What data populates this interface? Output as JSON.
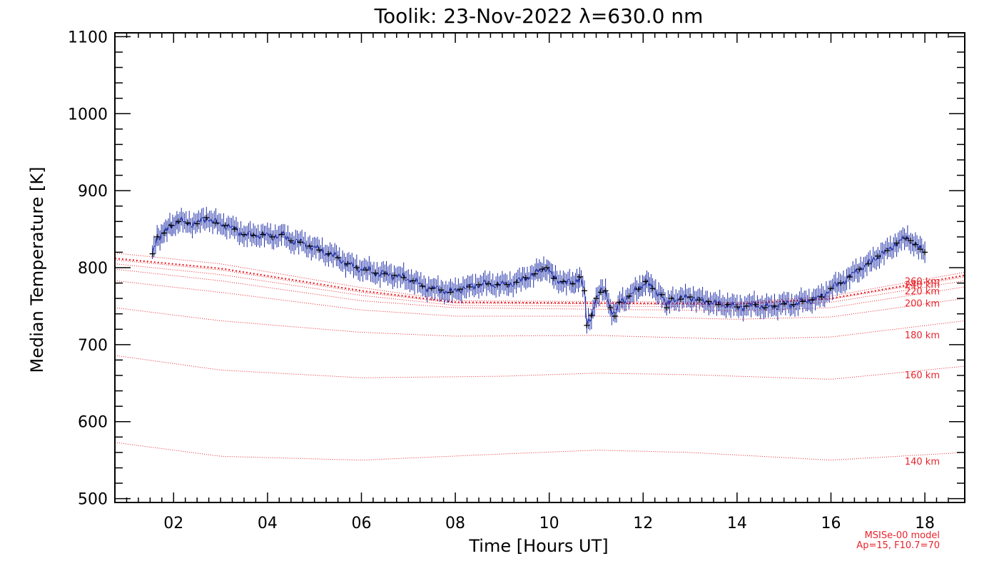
{
  "chart_data": {
    "type": "line",
    "title": "Toolik: 23-Nov-2022 λ=630.0 nm",
    "xlabel": "Time [Hours UT]",
    "ylabel": "Median Temperature [K]",
    "xlim": [
      0.75,
      18.85
    ],
    "ylim": [
      495,
      1105
    ],
    "x_ticks": [
      2,
      4,
      6,
      8,
      10,
      12,
      14,
      16,
      18
    ],
    "x_tick_labels": [
      "02",
      "04",
      "06",
      "08",
      "10",
      "12",
      "14",
      "16",
      "18"
    ],
    "y_ticks": [
      500,
      600,
      700,
      800,
      900,
      1000,
      1100
    ],
    "y_tick_labels": [
      "500",
      "600",
      "700",
      "800",
      "900",
      "1000",
      "1100"
    ],
    "grid": false,
    "colors": {
      "measurement": "#1f2fa8",
      "marker": "#000000",
      "model": "#e8242b"
    },
    "series": [
      {
        "points": [
          [
            1.55,
            818
          ],
          [
            1.65,
            840
          ],
          [
            1.8,
            845
          ],
          [
            1.95,
            855
          ],
          [
            2.1,
            860
          ],
          [
            2.3,
            858
          ],
          [
            2.5,
            857
          ],
          [
            2.7,
            865
          ],
          [
            2.9,
            858
          ],
          [
            3.1,
            855
          ],
          [
            3.3,
            850
          ],
          [
            3.5,
            843
          ],
          [
            3.7,
            842
          ],
          [
            3.9,
            843
          ],
          [
            4.1,
            840
          ],
          [
            4.3,
            843
          ],
          [
            4.5,
            835
          ],
          [
            4.7,
            833
          ],
          [
            4.9,
            828
          ],
          [
            5.1,
            823
          ],
          [
            5.3,
            818
          ],
          [
            5.5,
            813
          ],
          [
            5.7,
            805
          ],
          [
            5.9,
            800
          ],
          [
            6.1,
            797
          ],
          [
            6.3,
            793
          ],
          [
            6.5,
            792
          ],
          [
            6.7,
            790
          ],
          [
            6.9,
            787
          ],
          [
            7.1,
            783
          ],
          [
            7.3,
            776
          ],
          [
            7.5,
            773
          ],
          [
            7.7,
            771
          ],
          [
            7.9,
            768
          ],
          [
            8.1,
            772
          ],
          [
            8.3,
            775
          ],
          [
            8.5,
            778
          ],
          [
            8.7,
            779
          ],
          [
            8.9,
            778
          ],
          [
            9.1,
            778
          ],
          [
            9.3,
            781
          ],
          [
            9.5,
            787
          ],
          [
            9.7,
            792
          ],
          [
            9.85,
            798
          ],
          [
            9.95,
            800
          ],
          [
            10.1,
            786
          ],
          [
            10.3,
            782
          ],
          [
            10.5,
            779
          ],
          [
            10.65,
            788
          ],
          [
            10.75,
            770
          ],
          [
            10.8,
            725
          ],
          [
            10.9,
            738
          ],
          [
            11.0,
            760
          ],
          [
            11.1,
            768
          ],
          [
            11.2,
            770
          ],
          [
            11.3,
            748
          ],
          [
            11.4,
            737
          ],
          [
            11.5,
            755
          ],
          [
            11.7,
            763
          ],
          [
            11.9,
            772
          ],
          [
            12.05,
            782
          ],
          [
            12.2,
            773
          ],
          [
            12.4,
            765
          ],
          [
            12.5,
            748
          ],
          [
            12.6,
            760
          ],
          [
            12.8,
            759
          ],
          [
            13.0,
            762
          ],
          [
            13.2,
            758
          ],
          [
            13.4,
            756
          ],
          [
            13.6,
            752
          ],
          [
            13.8,
            752
          ],
          [
            14.0,
            749
          ],
          [
            14.2,
            750
          ],
          [
            14.4,
            752
          ],
          [
            14.6,
            748
          ],
          [
            14.8,
            750
          ],
          [
            15.0,
            753
          ],
          [
            15.2,
            752
          ],
          [
            15.4,
            756
          ],
          [
            15.6,
            758
          ],
          [
            15.8,
            762
          ],
          [
            16.0,
            773
          ],
          [
            16.2,
            780
          ],
          [
            16.4,
            788
          ],
          [
            16.6,
            798
          ],
          [
            16.8,
            805
          ],
          [
            17.0,
            815
          ],
          [
            17.2,
            822
          ],
          [
            17.4,
            832
          ],
          [
            17.6,
            838
          ],
          [
            17.7,
            835
          ],
          [
            17.8,
            830
          ],
          [
            17.9,
            824
          ],
          [
            18.0,
            820
          ]
        ]
      }
    ],
    "model_curves": [
      {
        "label": "140 km",
        "label_y": 549,
        "values": [
          [
            0.75,
            573
          ],
          [
            3,
            555
          ],
          [
            6,
            550
          ],
          [
            9,
            558
          ],
          [
            11,
            563
          ],
          [
            13,
            560
          ],
          [
            16,
            550
          ],
          [
            18.85,
            560
          ]
        ]
      },
      {
        "label": "160 km",
        "label_y": 661,
        "values": [
          [
            0.75,
            686
          ],
          [
            3,
            667
          ],
          [
            6,
            657
          ],
          [
            9,
            659
          ],
          [
            11,
            663
          ],
          [
            13,
            661
          ],
          [
            16,
            655
          ],
          [
            18.85,
            672
          ]
        ]
      },
      {
        "label": "180 km",
        "label_y": 713,
        "values": [
          [
            0.75,
            748
          ],
          [
            3,
            731
          ],
          [
            6,
            716
          ],
          [
            8,
            711
          ],
          [
            11,
            712
          ],
          [
            14,
            707
          ],
          [
            16,
            710
          ],
          [
            18.85,
            731
          ]
        ]
      },
      {
        "label": "200 km",
        "label_y": 754,
        "values": [
          [
            0.75,
            783
          ],
          [
            3,
            768
          ],
          [
            6,
            745
          ],
          [
            8,
            737
          ],
          [
            11,
            737
          ],
          [
            14,
            733
          ],
          [
            16,
            736
          ],
          [
            18.85,
            760
          ]
        ]
      },
      {
        "label": "220 km",
        "label_y": 770,
        "values": [
          [
            0.75,
            798
          ],
          [
            3,
            783
          ],
          [
            6,
            757
          ],
          [
            8,
            748
          ],
          [
            11,
            746
          ],
          [
            14,
            744
          ],
          [
            16,
            748
          ],
          [
            18.85,
            775
          ]
        ]
      },
      {
        "label": "240 km",
        "label_y": 778,
        "values": [
          [
            0.75,
            805
          ],
          [
            3,
            791
          ],
          [
            6,
            764
          ],
          [
            8,
            751
          ],
          [
            11,
            750
          ],
          [
            14,
            749
          ],
          [
            16,
            755
          ],
          [
            18.85,
            783
          ]
        ]
      },
      {
        "label": "260 km",
        "label_y": 783,
        "values": [
          [
            0.75,
            810
          ],
          [
            3,
            797
          ],
          [
            6,
            768
          ],
          [
            8,
            754
          ],
          [
            11,
            753
          ],
          [
            14,
            752
          ],
          [
            16,
            759
          ],
          [
            18.85,
            788
          ]
        ]
      },
      {
        "label": "",
        "label_y": 0,
        "bold": true,
        "values": [
          [
            0.75,
            812
          ],
          [
            3,
            799
          ],
          [
            6,
            770
          ],
          [
            8,
            755
          ],
          [
            11,
            754
          ],
          [
            14,
            753
          ],
          [
            16,
            760
          ],
          [
            18.85,
            790
          ]
        ]
      },
      {
        "label": "",
        "label_y": 0,
        "values": [
          [
            0.75,
            819
          ],
          [
            3,
            805
          ],
          [
            6,
            774
          ],
          [
            8,
            757
          ],
          [
            11,
            756
          ],
          [
            14,
            755
          ],
          [
            16,
            763
          ],
          [
            18.85,
            794
          ]
        ]
      }
    ],
    "annotations": [
      "MSISe-00 model",
      "Ap=15, F10.7=70"
    ]
  }
}
